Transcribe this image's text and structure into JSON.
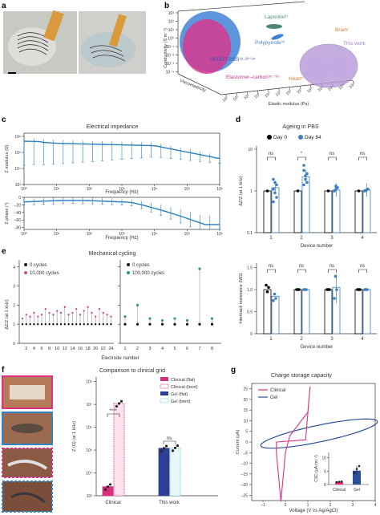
{
  "panels": {
    "a": "a",
    "b": "b",
    "c": "c",
    "d": "d",
    "e": "e",
    "f": "f",
    "g": "g"
  },
  "panel_b": {
    "ylabel": "Conductivity (S m⁻¹)",
    "xlabel": "Elastic modulus (Pa)",
    "zlabel": "Viscoelasticity",
    "x_ticks": [
      "10⁰",
      "10¹",
      "10²",
      "10³",
      "10⁴",
      "10⁵",
      "10⁶",
      "10⁷",
      "10⁸",
      "10⁹",
      "10¹⁰",
      "10¹¹",
      "10¹²"
    ],
    "y_ticks": [
      "10³",
      "10²",
      "10¹",
      "10⁰",
      "10⁻¹",
      "10⁻²",
      "10⁻³",
      "10⁻⁴"
    ],
    "labels": {
      "laponite": "Laponite³¹",
      "polypyrrole": "Polypyrrole³⁹",
      "pedot": "PEDOT:PSS¹⁸·³²⁻³⁴",
      "elastomer": "Elastomer–carbon³⁵⁻³⁸",
      "brain": "Brain⁷",
      "this_work": "This work",
      "heart": "Heart⁷"
    },
    "colors": {
      "blue": "#3b7fd6",
      "magenta": "#d6398f",
      "purple": "#b59ad8",
      "laponite": "#4b8a70",
      "polypyrrole": "#3f7fd0",
      "pedot": "#3a50b0",
      "elastomer": "#c03b88",
      "brain": "#e07b2a",
      "this_work": "#a383cf",
      "heart": "#e07b2a"
    }
  },
  "panel_c": {
    "title": "Electrical impedance",
    "top_ylabel": "Z modulus (Ω)",
    "bottom_ylabel": "Z phase (°)",
    "xlabel": "Frequency (Hz)",
    "x_ticks": [
      "10⁰",
      "10¹",
      "10²",
      "10³",
      "10⁴",
      "10⁵",
      "10⁶"
    ],
    "top_y_ticks": [
      "10⁶",
      "10⁵",
      "10⁴",
      "10³"
    ],
    "bottom_y_ticks": [
      "0",
      "–20",
      "–40",
      "–60",
      "–80"
    ],
    "color": "#2a7fc0"
  },
  "panel_d": {
    "title": "Ageing in PBS",
    "legend": [
      "Day 0",
      "Day 84"
    ],
    "top_ylabel": "ΔZ/Z (at 1 kHz)",
    "bottom_ylabel": "Intertrack resistance (MΩ)",
    "xlabel": "Device number",
    "devices": [
      "1",
      "2",
      "3",
      "4"
    ],
    "top_sig": [
      "ns",
      "*",
      "ns",
      "ns"
    ],
    "bottom_sig": [
      "ns",
      "ns",
      "ns",
      "ns"
    ],
    "top_y_ticks": [
      "10",
      "1",
      "0.1"
    ],
    "bottom_y_ticks": [
      "1.5",
      "1.0",
      "0.5",
      "0"
    ],
    "colors": {
      "day0": "#000000",
      "day84": "#3b7fc4"
    }
  },
  "panel_e": {
    "title": "Mechanical cycling",
    "left_legend": [
      "0 cycles",
      "10,000 cycles"
    ],
    "right_legend": [
      "0 cycles",
      "100,000 cycles"
    ],
    "ylabel": "ΔZ/Z (at 1 kHz)",
    "xlabel": "Electrode number",
    "left_x_ticks": [
      "2",
      "4",
      "6",
      "8",
      "10",
      "12",
      "14",
      "16",
      "18",
      "20",
      "22",
      "24"
    ],
    "right_x_ticks": [
      "1",
      "2",
      "3",
      "4",
      "5",
      "6",
      "7",
      "8"
    ],
    "y_ticks": [
      "4",
      "3",
      "2",
      "1",
      "0"
    ],
    "colors": {
      "c0": "#111111",
      "c10k": "#c94a9a",
      "c100k": "#2c9a6c"
    }
  },
  "panel_f": {
    "title": "Comparison to clinical grid",
    "ylabel": "Z (Ω) (at 1 kHz)",
    "y_ticks": [
      "10⁸",
      "10⁷",
      "10⁶",
      "10⁵",
      "10⁴",
      "10³"
    ],
    "groups": [
      "Clinical",
      "This work"
    ],
    "legend": [
      "Clinical (flat)",
      "Clinical (bent)",
      "Gel (flat)",
      "Gel (bent)"
    ],
    "sig": [
      "****",
      "ns"
    ],
    "colors": {
      "clinical": "#d6307f",
      "gel": "#2d3f95",
      "gel_bent": "#5fc8d8"
    }
  },
  "panel_g": {
    "title": "Charge storage capacity",
    "legend": [
      "Clinical",
      "Gel"
    ],
    "ylabel": "Current (μA)",
    "xlabel": "Voltage (V vs Ag/AgCl)",
    "x_ticks": [
      "–1",
      "0",
      "1",
      "2",
      "3",
      "4"
    ],
    "y_ticks": [
      "25",
      "20",
      "15",
      "10",
      "5",
      "0",
      "–5",
      "–10",
      "–15",
      "–20",
      "–25"
    ],
    "inset_ylabel": "CSC (μA cm⁻²)",
    "inset_y_ticks": [
      "10",
      "5",
      "0"
    ],
    "inset_x": [
      "Clinical",
      "Gel"
    ],
    "colors": {
      "clinical": "#e0337f",
      "gel": "#2b4f9a"
    }
  }
}
